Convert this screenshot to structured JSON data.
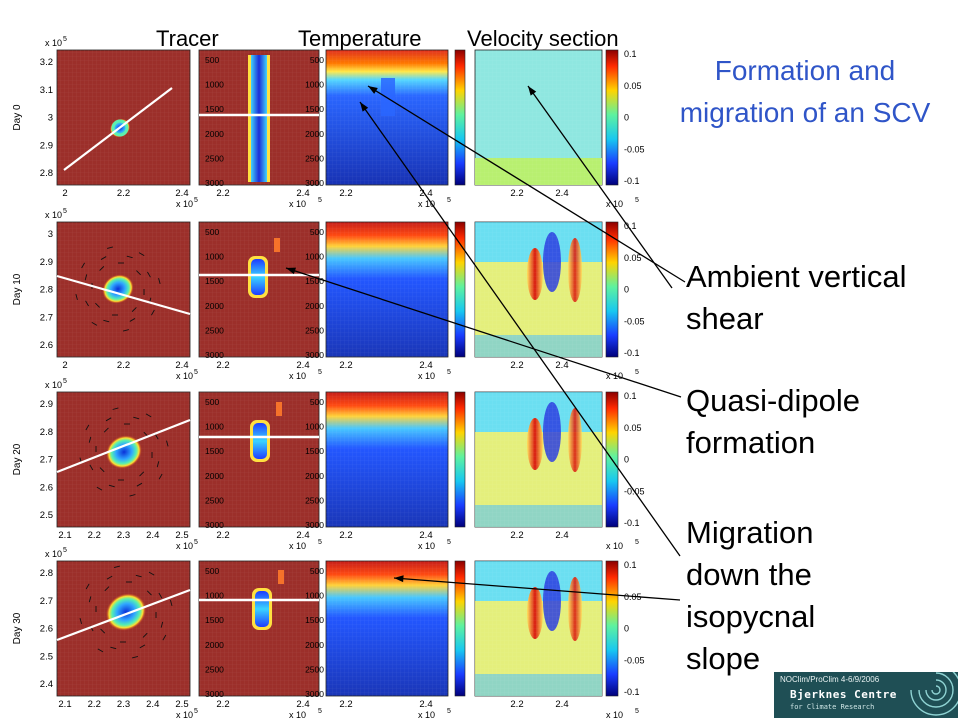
{
  "column_headers": [
    "Tracer",
    "Temperature",
    "Velocity section"
  ],
  "title": "Formation and migration of an SCV",
  "annotations": {
    "shear": "Ambient vertical shear",
    "dipole": "Quasi-dipole formation",
    "migration": "Migration down the isopycnal slope"
  },
  "rows": [
    {
      "day_label": "Day 0",
      "tracer_y_ticks": [
        "3.2",
        "3.1",
        "3",
        "2.9",
        "2.8"
      ],
      "tracer_x_ticks": [
        "2",
        "2.2",
        "2.4"
      ]
    },
    {
      "day_label": "Day 10",
      "tracer_y_ticks": [
        "3",
        "2.9",
        "2.8",
        "2.7",
        "2.6"
      ],
      "tracer_x_ticks": [
        "2",
        "2.2",
        "2.4"
      ]
    },
    {
      "day_label": "Day 20",
      "tracer_y_ticks": [
        "2.9",
        "2.8",
        "2.7",
        "2.6",
        "2.5"
      ],
      "tracer_x_ticks": [
        "2.1",
        "2.2",
        "2.3",
        "2.4",
        "2.5"
      ]
    },
    {
      "day_label": "Day 30",
      "tracer_y_ticks": [
        "2.8",
        "2.7",
        "2.6",
        "2.5",
        "2.4"
      ],
      "tracer_x_ticks": [
        "2.1",
        "2.2",
        "2.3",
        "2.4",
        "2.5"
      ]
    }
  ],
  "depth_ticks": [
    "500",
    "1000",
    "1500",
    "2000",
    "2500",
    "3000"
  ],
  "section_x_ticks": [
    "2.2",
    "2.4"
  ],
  "colorbar_ticks": [
    "0.1",
    "0.05",
    "0",
    "-0.05",
    "-0.1"
  ],
  "axis_exponent": "x 10",
  "exponent_power": "5",
  "logo": {
    "meta": "NOClim/ProClim 4-6/9/2006",
    "name": "Bjerknes Centre",
    "sub": "for Climate Research"
  },
  "colors": {
    "title": "#2f55c8",
    "tracer_background": "#9c2f2a",
    "temperature_warm": "#d8361e",
    "temperature_cold": "#1f3ec0",
    "velocity_background": "#8fe7e0"
  }
}
